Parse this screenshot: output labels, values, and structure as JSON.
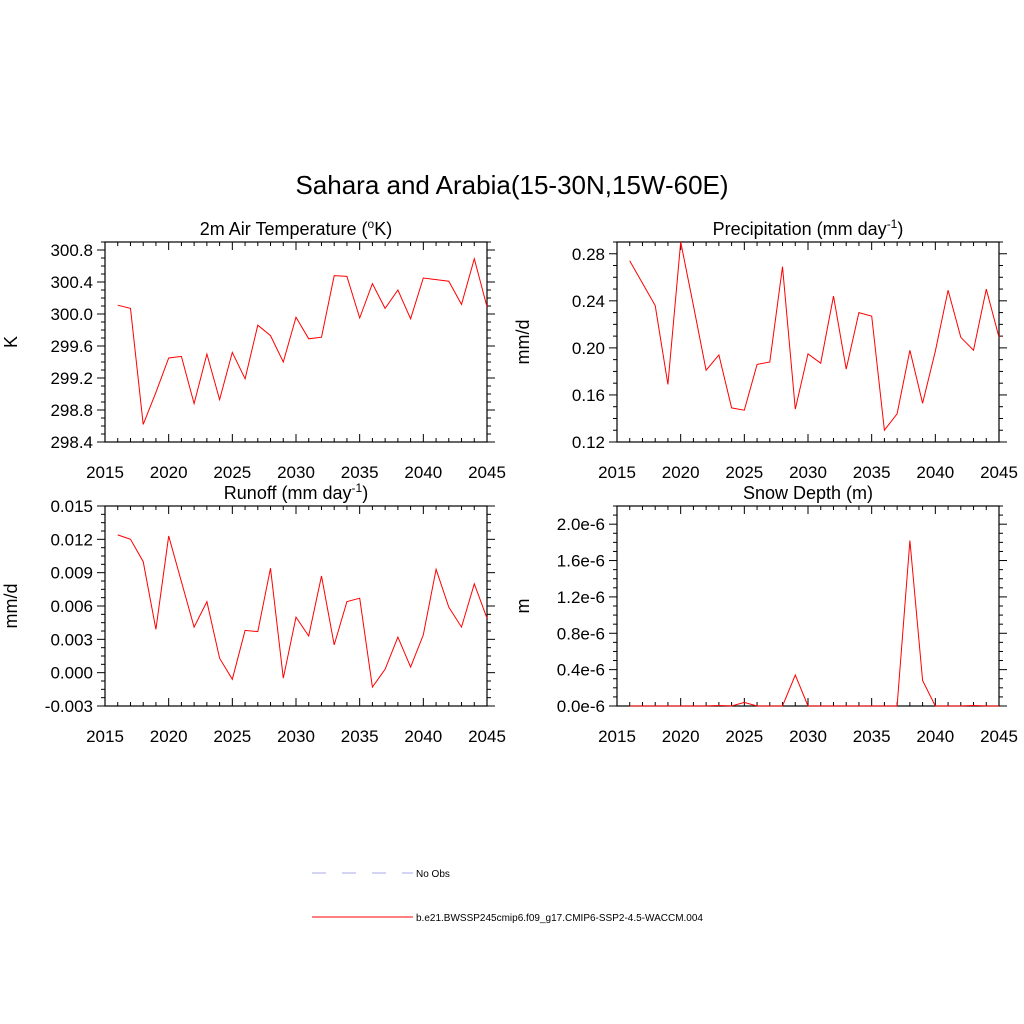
{
  "figure_title": "Sahara and Arabia(15-30N,15W-60E)",
  "chart_data": [
    {
      "type": "line",
      "title": "2m Air Temperature (",
      "title_sup": "o",
      "title_after": "K)",
      "ylabel": "K",
      "xlim": [
        2015,
        2045
      ],
      "ylim": [
        298.4,
        300.9
      ],
      "xticks": [
        2015,
        2020,
        2025,
        2030,
        2035,
        2040,
        2045
      ],
      "yticks": [
        298.4,
        298.8,
        299.2,
        299.6,
        300.0,
        300.4,
        300.8
      ],
      "ytick_labels": [
        "298.4",
        "298.8",
        "299.2",
        "299.6",
        "300.0",
        "300.4",
        "300.8"
      ],
      "series": [
        {
          "x": [
            2016,
            2017,
            2018,
            2019,
            2020,
            2021,
            2022,
            2023,
            2024,
            2025,
            2026,
            2027,
            2028,
            2029,
            2030,
            2031,
            2032,
            2033,
            2034,
            2035,
            2036,
            2037,
            2038,
            2039,
            2040,
            2041,
            2042,
            2043,
            2044,
            2045
          ],
          "y": [
            300.11,
            300.07,
            298.62,
            299.02,
            299.45,
            299.47,
            298.88,
            299.5,
            298.93,
            299.52,
            299.19,
            299.86,
            299.73,
            299.4,
            299.96,
            299.69,
            299.71,
            300.48,
            300.47,
            299.95,
            300.38,
            300.07,
            300.3,
            299.94,
            300.45,
            300.43,
            300.41,
            300.12,
            300.69,
            300.09
          ]
        }
      ]
    },
    {
      "type": "line",
      "title": "Precipitation (mm day",
      "title_sup": "-1",
      "title_after": ")",
      "ylabel": "mm/d",
      "xlim": [
        2015,
        2045
      ],
      "ylim": [
        0.12,
        0.29
      ],
      "xticks": [
        2015,
        2020,
        2025,
        2030,
        2035,
        2040,
        2045
      ],
      "yticks": [
        0.12,
        0.16,
        0.2,
        0.24,
        0.28
      ],
      "ytick_labels": [
        "0.12",
        "0.16",
        "0.20",
        "0.24",
        "0.28"
      ],
      "series": [
        {
          "x": [
            2016,
            2017,
            2018,
            2019,
            2020,
            2021,
            2022,
            2023,
            2024,
            2025,
            2026,
            2027,
            2028,
            2029,
            2030,
            2031,
            2032,
            2033,
            2034,
            2035,
            2036,
            2037,
            2038,
            2039,
            2040,
            2041,
            2042,
            2043,
            2044,
            2045
          ],
          "y": [
            0.274,
            0.255,
            0.236,
            0.169,
            0.29,
            0.236,
            0.181,
            0.194,
            0.149,
            0.147,
            0.186,
            0.188,
            0.269,
            0.148,
            0.195,
            0.187,
            0.244,
            0.182,
            0.23,
            0.227,
            0.13,
            0.144,
            0.198,
            0.153,
            0.197,
            0.249,
            0.209,
            0.198,
            0.25,
            0.209
          ]
        }
      ]
    },
    {
      "type": "line",
      "title": "Runoff (mm day",
      "title_sup": "-1",
      "title_after": ")",
      "ylabel": "mm/d",
      "xlim": [
        2015,
        2045
      ],
      "ylim": [
        -0.003,
        0.015
      ],
      "xticks": [
        2015,
        2020,
        2025,
        2030,
        2035,
        2040,
        2045
      ],
      "yticks": [
        -0.003,
        0.0,
        0.003,
        0.006,
        0.009,
        0.012,
        0.015
      ],
      "ytick_labels": [
        "-0.003",
        "0.000",
        "0.003",
        "0.006",
        "0.009",
        "0.012",
        "0.015"
      ],
      "series": [
        {
          "x": [
            2016,
            2017,
            2018,
            2019,
            2020,
            2021,
            2022,
            2023,
            2024,
            2025,
            2026,
            2027,
            2028,
            2029,
            2030,
            2031,
            2032,
            2033,
            2034,
            2035,
            2036,
            2037,
            2038,
            2039,
            2040,
            2041,
            2042,
            2043,
            2044,
            2045
          ],
          "y": [
            0.0124,
            0.012,
            0.01,
            0.0039,
            0.0123,
            0.0082,
            0.0041,
            0.0064,
            0.0013,
            -0.0006,
            0.0038,
            0.0037,
            0.0094,
            -0.0005,
            0.005,
            0.0033,
            0.0087,
            0.0025,
            0.0064,
            0.0067,
            -0.0013,
            0.0003,
            0.0032,
            0.0005,
            0.0034,
            0.0093,
            0.0059,
            0.0041,
            0.008,
            0.0049
          ]
        }
      ]
    },
    {
      "type": "line",
      "title": "Snow Depth (m)",
      "title_sup": "",
      "title_after": "",
      "ylabel": "m",
      "xlim": [
        2015,
        2045
      ],
      "ylim": [
        0,
        2.2e-06
      ],
      "xticks": [
        2015,
        2020,
        2025,
        2030,
        2035,
        2040,
        2045
      ],
      "yticks": [
        0,
        4e-07,
        8e-07,
        1.2e-06,
        1.6e-06,
        2e-06
      ],
      "ytick_labels": [
        "0.0e-6",
        "0.4e-6",
        "0.8e-6",
        "1.2e-6",
        "1.6e-6",
        "2.0e-6"
      ],
      "series": [
        {
          "x": [
            2016,
            2017,
            2018,
            2019,
            2020,
            2021,
            2022,
            2023,
            2024,
            2025,
            2026,
            2027,
            2028,
            2029,
            2030,
            2031,
            2032,
            2033,
            2034,
            2035,
            2036,
            2037,
            2038,
            2039,
            2040,
            2041,
            2042,
            2043,
            2044,
            2045
          ],
          "y": [
            0,
            0,
            0,
            0,
            0,
            0,
            0,
            5e-09,
            0,
            4e-08,
            0,
            0,
            0,
            3.4e-07,
            0,
            0,
            0,
            0,
            0,
            0,
            0,
            0,
            1.82e-06,
            2.8e-07,
            0,
            0,
            0,
            5e-09,
            0,
            0
          ]
        }
      ]
    }
  ],
  "legend": {
    "items": [
      {
        "label": "No Obs",
        "color": "#a9a9e8",
        "style": "dashed"
      },
      {
        "label": "b.e21.BWSSP245cmip6.f09_g17.CMIP6-SSP2-4.5-WACCM.004",
        "color": "#ff0000",
        "style": "solid"
      }
    ]
  },
  "colors": {
    "series": "#ff0000",
    "axis": "#000000"
  }
}
